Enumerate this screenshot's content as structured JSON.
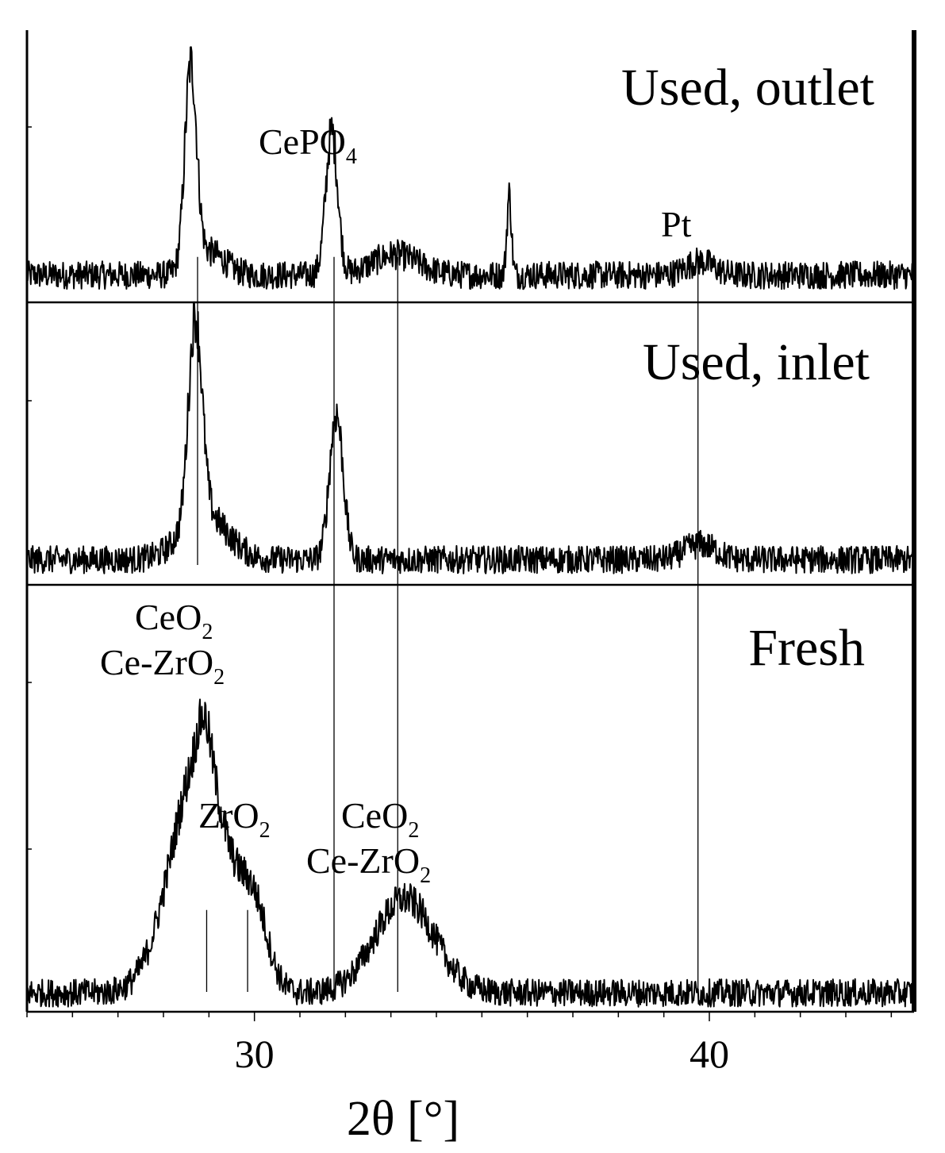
{
  "chart_data": {
    "type": "line",
    "xlabel": "2θ [°]",
    "xlim": [
      25,
      44.5
    ],
    "x_ticks": [
      30,
      40
    ],
    "x_tick_labels": [
      "30",
      "40"
    ],
    "ylabel": "",
    "grid": false,
    "series": [
      {
        "name": "Used, outlet",
        "background": 0.12,
        "noise": 0.055,
        "peaks": [
          {
            "x": 28.6,
            "height": 0.88,
            "width": 0.13
          },
          {
            "x": 29.0,
            "height": 0.1,
            "width": 0.35
          },
          {
            "x": 31.7,
            "height": 0.63,
            "width": 0.13
          },
          {
            "x": 33.1,
            "height": 0.09,
            "width": 0.5
          },
          {
            "x": 35.6,
            "height": 0.35,
            "width": 0.05
          },
          {
            "x": 39.8,
            "height": 0.06,
            "width": 0.3
          }
        ]
      },
      {
        "name": "Used, inlet",
        "background": 0.1,
        "noise": 0.05,
        "peaks": [
          {
            "x": 28.7,
            "height": 0.8,
            "width": 0.15
          },
          {
            "x": 28.9,
            "height": 0.18,
            "width": 0.5
          },
          {
            "x": 31.8,
            "height": 0.58,
            "width": 0.15
          },
          {
            "x": 39.8,
            "height": 0.06,
            "width": 0.35
          }
        ]
      },
      {
        "name": "Fresh",
        "background": 0.05,
        "noise": 0.035,
        "peaks": [
          {
            "x": 28.8,
            "height": 0.62,
            "width": 0.62
          },
          {
            "x": 28.9,
            "height": 0.12,
            "width": 0.15
          },
          {
            "x": 30.0,
            "height": 0.18,
            "width": 0.3
          },
          {
            "x": 33.3,
            "height": 0.25,
            "width": 0.65
          }
        ]
      }
    ],
    "reference_lines": [
      {
        "x": 28.75,
        "from_series": "Used, outlet",
        "to_series": "Used, inlet"
      },
      {
        "x": 31.75,
        "from_series": "Used, outlet",
        "to_series": "Fresh"
      },
      {
        "x": 33.15,
        "from_series": "Used, outlet",
        "to_series": "Fresh"
      },
      {
        "x": 39.75,
        "from_series": "Used, outlet",
        "to_series": "Fresh"
      },
      {
        "x": 28.95,
        "from_series": "Fresh",
        "to_series": "Fresh"
      },
      {
        "x": 29.85,
        "from_series": "Fresh",
        "to_series": "Fresh"
      }
    ],
    "panel_labels": [
      "Used, outlet",
      "Used, inlet",
      "Fresh"
    ],
    "annotations": {
      "cepo4": {
        "main": "CePO",
        "sub": "4"
      },
      "pt": {
        "main": "Pt"
      },
      "ceo2_a": {
        "main": "CeO",
        "sub": "2"
      },
      "cezro2_a": {
        "main": "Ce-ZrO",
        "sub": "2"
      },
      "zro2": {
        "main": "ZrO",
        "sub": "2"
      },
      "ceo2_b": {
        "main": "CeO",
        "sub": "2"
      },
      "cezro2_b": {
        "main": "Ce-ZrO",
        "sub": "2"
      }
    },
    "colors": {
      "trace": "#000000",
      "frame": "#000000",
      "background": "#ffffff"
    }
  }
}
